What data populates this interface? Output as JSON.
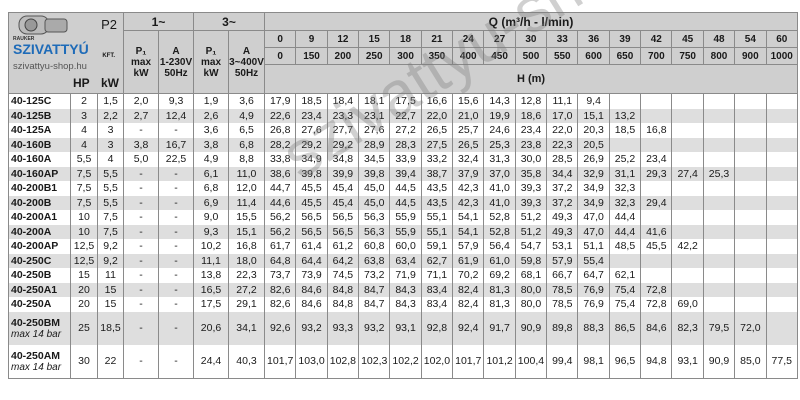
{
  "logo": {
    "brand_small": "RAUKER",
    "brand": "SZIVATTYÚ",
    "suffix": "KFT.",
    "site": "szivattyu-shop.hu"
  },
  "watermark": "szivattyu-shop.hu",
  "header": {
    "p2": "P2",
    "hp": "HP",
    "kw": "kW",
    "single_phase": "1~",
    "three_phase": "3~",
    "p1_label": "P₁",
    "p1_max": "max",
    "p1_unit": "kW",
    "a_label": "A",
    "a1_voltage": "1-230V",
    "a3_voltage": "3~400V",
    "hz": "50Hz",
    "q_title": "Q (m³/h - l/min)",
    "h_title": "H (m)",
    "q_m3h": [
      "0",
      "9",
      "12",
      "15",
      "18",
      "21",
      "24",
      "27",
      "30",
      "33",
      "36",
      "39",
      "42",
      "45",
      "48",
      "54",
      "60"
    ],
    "q_lmin": [
      "0",
      "150",
      "200",
      "250",
      "300",
      "350",
      "400",
      "450",
      "500",
      "550",
      "600",
      "650",
      "700",
      "750",
      "800",
      "900",
      "1000"
    ]
  },
  "rows": [
    {
      "model": "40-125C",
      "note": "",
      "hp": "2",
      "kw": "1,5",
      "p1_1": "2,0",
      "a_1": "9,3",
      "p1_3": "1,9",
      "a_3": "3,6",
      "h": [
        "17,9",
        "18,5",
        "18,4",
        "18,1",
        "17,5",
        "16,6",
        "15,6",
        "14,3",
        "12,8",
        "11,1",
        "9,4",
        "",
        "",
        "",
        "",
        "",
        ""
      ]
    },
    {
      "model": "40-125B",
      "note": "",
      "hp": "3",
      "kw": "2,2",
      "p1_1": "2,7",
      "a_1": "12,4",
      "p1_3": "2,6",
      "a_3": "4,9",
      "h": [
        "22,6",
        "23,4",
        "23,3",
        "23,1",
        "22,7",
        "22,0",
        "21,0",
        "19,9",
        "18,6",
        "17,0",
        "15,1",
        "13,2",
        "",
        "",
        "",
        "",
        ""
      ]
    },
    {
      "model": "40-125A",
      "note": "",
      "hp": "4",
      "kw": "3",
      "p1_1": "-",
      "a_1": "-",
      "p1_3": "3,6",
      "a_3": "6,5",
      "h": [
        "26,8",
        "27,6",
        "27,7",
        "27,6",
        "27,2",
        "26,5",
        "25,7",
        "24,6",
        "23,4",
        "22,0",
        "20,3",
        "18,5",
        "16,8",
        "",
        "",
        "",
        ""
      ]
    },
    {
      "model": "40-160B",
      "note": "",
      "hp": "4",
      "kw": "3",
      "p1_1": "3,8",
      "a_1": "16,7",
      "p1_3": "3,8",
      "a_3": "6,8",
      "h": [
        "28,2",
        "29,2",
        "29,2",
        "28,9",
        "28,3",
        "27,5",
        "26,5",
        "25,3",
        "23,8",
        "22,3",
        "20,5",
        "",
        "",
        "",
        "",
        "",
        ""
      ]
    },
    {
      "model": "40-160A",
      "note": "",
      "hp": "5,5",
      "kw": "4",
      "p1_1": "5,0",
      "a_1": "22,5",
      "p1_3": "4,9",
      "a_3": "8,8",
      "h": [
        "33,8",
        "34,9",
        "34,8",
        "34,5",
        "33,9",
        "33,2",
        "32,4",
        "31,3",
        "30,0",
        "28,5",
        "26,9",
        "25,2",
        "23,4",
        "",
        "",
        "",
        ""
      ]
    },
    {
      "model": "40-160AP",
      "note": "",
      "hp": "7,5",
      "kw": "5,5",
      "p1_1": "-",
      "a_1": "-",
      "p1_3": "6,1",
      "a_3": "11,0",
      "h": [
        "38,6",
        "39,8",
        "39,9",
        "39,8",
        "39,4",
        "38,7",
        "37,9",
        "37,0",
        "35,8",
        "34,4",
        "32,9",
        "31,1",
        "29,3",
        "27,4",
        "25,3",
        "",
        ""
      ]
    },
    {
      "model": "40-200B1",
      "note": "",
      "hp": "7,5",
      "kw": "5,5",
      "p1_1": "-",
      "a_1": "-",
      "p1_3": "6,8",
      "a_3": "12,0",
      "h": [
        "44,7",
        "45,5",
        "45,4",
        "45,0",
        "44,5",
        "43,5",
        "42,3",
        "41,0",
        "39,3",
        "37,2",
        "34,9",
        "32,3",
        "",
        "",
        "",
        "",
        ""
      ]
    },
    {
      "model": "40-200B",
      "note": "",
      "hp": "7,5",
      "kw": "5,5",
      "p1_1": "-",
      "a_1": "-",
      "p1_3": "6,9",
      "a_3": "11,4",
      "h": [
        "44,6",
        "45,5",
        "45,4",
        "45,0",
        "44,5",
        "43,5",
        "42,3",
        "41,0",
        "39,3",
        "37,2",
        "34,9",
        "32,3",
        "29,4",
        "",
        "",
        "",
        ""
      ]
    },
    {
      "model": "40-200A1",
      "note": "",
      "hp": "10",
      "kw": "7,5",
      "p1_1": "-",
      "a_1": "-",
      "p1_3": "9,0",
      "a_3": "15,5",
      "h": [
        "56,2",
        "56,5",
        "56,5",
        "56,3",
        "55,9",
        "55,1",
        "54,1",
        "52,8",
        "51,2",
        "49,3",
        "47,0",
        "44,4",
        "",
        "",
        "",
        "",
        ""
      ]
    },
    {
      "model": "40-200A",
      "note": "",
      "hp": "10",
      "kw": "7,5",
      "p1_1": "-",
      "a_1": "-",
      "p1_3": "9,3",
      "a_3": "15,1",
      "h": [
        "56,2",
        "56,5",
        "56,5",
        "56,3",
        "55,9",
        "55,1",
        "54,1",
        "52,8",
        "51,2",
        "49,3",
        "47,0",
        "44,4",
        "41,6",
        "",
        "",
        "",
        ""
      ]
    },
    {
      "model": "40-200AP",
      "note": "",
      "hp": "12,5",
      "kw": "9,2",
      "p1_1": "-",
      "a_1": "-",
      "p1_3": "10,2",
      "a_3": "16,8",
      "h": [
        "61,7",
        "61,4",
        "61,2",
        "60,8",
        "60,0",
        "59,1",
        "57,9",
        "56,4",
        "54,7",
        "53,1",
        "51,1",
        "48,5",
        "45,5",
        "42,2",
        "",
        "",
        ""
      ]
    },
    {
      "model": "40-250C",
      "note": "",
      "hp": "12,5",
      "kw": "9,2",
      "p1_1": "-",
      "a_1": "-",
      "p1_3": "11,1",
      "a_3": "18,0",
      "h": [
        "64,8",
        "64,4",
        "64,2",
        "63,8",
        "63,4",
        "62,7",
        "61,9",
        "61,0",
        "59,8",
        "57,9",
        "55,4",
        "",
        "",
        "",
        "",
        "",
        ""
      ]
    },
    {
      "model": "40-250B",
      "note": "",
      "hp": "15",
      "kw": "11",
      "p1_1": "-",
      "a_1": "-",
      "p1_3": "13,8",
      "a_3": "22,3",
      "h": [
        "73,7",
        "73,9",
        "74,5",
        "73,2",
        "71,9",
        "71,1",
        "70,2",
        "69,2",
        "68,1",
        "66,7",
        "64,7",
        "62,1",
        "",
        "",
        "",
        "",
        ""
      ]
    },
    {
      "model": "40-250A1",
      "note": "",
      "hp": "20",
      "kw": "15",
      "p1_1": "-",
      "a_1": "-",
      "p1_3": "16,5",
      "a_3": "27,2",
      "h": [
        "82,6",
        "84,6",
        "84,8",
        "84,7",
        "84,3",
        "83,4",
        "82,4",
        "81,3",
        "80,0",
        "78,5",
        "76,9",
        "75,4",
        "72,8",
        "",
        "",
        "",
        ""
      ]
    },
    {
      "model": "40-250A",
      "note": "",
      "hp": "20",
      "kw": "15",
      "p1_1": "-",
      "a_1": "-",
      "p1_3": "17,5",
      "a_3": "29,1",
      "h": [
        "82,6",
        "84,6",
        "84,8",
        "84,7",
        "84,3",
        "83,4",
        "82,4",
        "81,3",
        "80,0",
        "78,5",
        "76,9",
        "75,4",
        "72,8",
        "69,0",
        "",
        "",
        ""
      ]
    },
    {
      "model": "40-250BM",
      "note": "max 14 bar",
      "hp": "25",
      "kw": "18,5",
      "p1_1": "-",
      "a_1": "-",
      "p1_3": "20,6",
      "a_3": "34,1",
      "h": [
        "92,6",
        "93,2",
        "93,3",
        "93,2",
        "93,1",
        "92,8",
        "92,4",
        "91,7",
        "90,9",
        "89,8",
        "88,3",
        "86,5",
        "84,6",
        "82,3",
        "79,5",
        "72,0",
        ""
      ]
    },
    {
      "model": "40-250AM",
      "note": "max 14 bar",
      "hp": "30",
      "kw": "22",
      "p1_1": "-",
      "a_1": "-",
      "p1_3": "24,4",
      "a_3": "40,3",
      "h": [
        "101,7",
        "103,0",
        "102,8",
        "102,3",
        "102,2",
        "102,0",
        "101,7",
        "101,2",
        "100,4",
        "99,4",
        "98,1",
        "96,5",
        "94,8",
        "93,1",
        "90,9",
        "85,0",
        "77,5"
      ]
    }
  ]
}
